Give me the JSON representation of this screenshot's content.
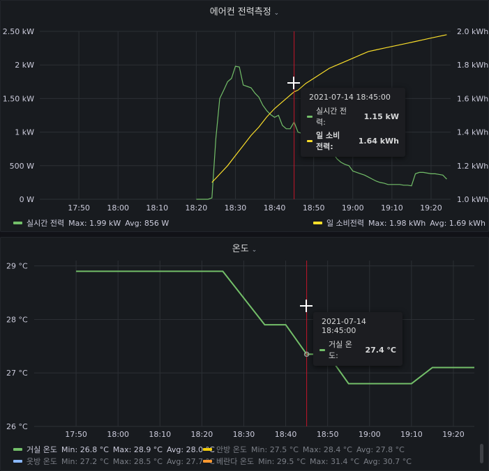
{
  "chart_data": [
    {
      "type": "line",
      "title": "에어컨 전력측정",
      "x_ticks": [
        "17:50",
        "18:00",
        "18:10",
        "18:20",
        "18:30",
        "18:40",
        "18:50",
        "19:00",
        "19:10",
        "19:20"
      ],
      "y_left_ticks": [
        "0 W",
        "500 W",
        "1 kW",
        "1.50 kW",
        "2 kW",
        "2.50 kW"
      ],
      "y_right_ticks": [
        "1.0 kWh",
        "1.2 kWh",
        "1.4 kWh",
        "1.6 kWh",
        "1.8 kWh",
        "2.0 kWh"
      ],
      "y_left_range": [
        0,
        2.5
      ],
      "y_right_range": [
        1.0,
        2.0
      ],
      "x_range": [
        "17:40",
        "19:25"
      ],
      "grid": true,
      "series": [
        {
          "name": "실시간 전력",
          "axis": "left",
          "unit": "kW",
          "color": "#73bf69",
          "x": [
            "18:20",
            "18:21",
            "18:22",
            "18:23",
            "18:24",
            "18:25",
            "18:26",
            "18:27",
            "18:28",
            "18:29",
            "18:30",
            "18:31",
            "18:32",
            "18:33",
            "18:34",
            "18:35",
            "18:36",
            "18:37",
            "18:38",
            "18:39",
            "18:40",
            "18:41",
            "18:42",
            "18:43",
            "18:44",
            "18:45",
            "18:46",
            "18:47",
            "18:48",
            "18:49",
            "18:50",
            "18:51",
            "18:52",
            "18:53",
            "18:54",
            "18:55",
            "18:56",
            "18:57",
            "18:58",
            "18:59",
            "19:00",
            "19:01",
            "19:02",
            "19:03",
            "19:04",
            "19:05",
            "19:06",
            "19:07",
            "19:08",
            "19:09",
            "19:10",
            "19:11",
            "19:12",
            "19:13",
            "19:14",
            "19:15",
            "19:16",
            "19:17",
            "19:18",
            "19:19",
            "19:20",
            "19:21",
            "19:22",
            "19:23",
            "19:24"
          ],
          "values": [
            0.0,
            0.0,
            0.0,
            0.0,
            0.02,
            0.9,
            1.5,
            1.62,
            1.75,
            1.8,
            1.98,
            1.97,
            1.7,
            1.68,
            1.66,
            1.58,
            1.52,
            1.4,
            1.32,
            1.26,
            1.22,
            1.25,
            1.1,
            1.05,
            1.05,
            1.15,
            1.0,
            0.98,
            0.9,
            0.85,
            0.8,
            0.78,
            0.73,
            0.7,
            0.68,
            0.68,
            0.6,
            0.55,
            0.52,
            0.5,
            0.42,
            0.4,
            0.38,
            0.36,
            0.33,
            0.3,
            0.27,
            0.25,
            0.24,
            0.22,
            0.22,
            0.22,
            0.22,
            0.21,
            0.21,
            0.2,
            0.38,
            0.4,
            0.4,
            0.39,
            0.38,
            0.38,
            0.37,
            0.36,
            0.3
          ]
        },
        {
          "name": "일 소비전력",
          "axis": "right",
          "unit": "kWh",
          "color": "#fade2a",
          "x": [
            "18:24",
            "18:26",
            "18:28",
            "18:30",
            "18:32",
            "18:34",
            "18:36",
            "18:38",
            "18:40",
            "18:42",
            "18:44",
            "18:45",
            "18:46",
            "18:48",
            "18:50",
            "18:52",
            "18:54",
            "18:56",
            "18:58",
            "19:00",
            "19:02",
            "19:04",
            "19:06",
            "19:08",
            "19:10",
            "19:12",
            "19:14",
            "19:16",
            "19:18",
            "19:20",
            "19:22",
            "19:24"
          ],
          "values": [
            1.1,
            1.15,
            1.2,
            1.26,
            1.32,
            1.38,
            1.43,
            1.49,
            1.54,
            1.58,
            1.62,
            1.64,
            1.65,
            1.69,
            1.72,
            1.75,
            1.78,
            1.8,
            1.82,
            1.84,
            1.86,
            1.88,
            1.89,
            1.9,
            1.91,
            1.92,
            1.93,
            1.94,
            1.95,
            1.96,
            1.97,
            1.98
          ]
        }
      ]
    },
    {
      "type": "line",
      "title": "온도",
      "x_ticks": [
        "17:50",
        "18:00",
        "18:10",
        "18:20",
        "18:30",
        "18:40",
        "18:50",
        "19:00",
        "19:10",
        "19:20"
      ],
      "y_ticks": [
        "26 °C",
        "27 °C",
        "28 °C",
        "29 °C"
      ],
      "y_range": [
        26,
        29.1
      ],
      "x_range": [
        "17:40",
        "19:25"
      ],
      "grid": true,
      "series": [
        {
          "name": "거실 온도",
          "unit": "°C",
          "color": "#73bf69",
          "x": [
            "17:50",
            "18:25",
            "18:35",
            "18:40",
            "18:45",
            "18:50",
            "18:55",
            "19:05",
            "19:10",
            "19:15",
            "19:25"
          ],
          "values": [
            28.9,
            28.9,
            27.9,
            27.9,
            27.35,
            27.35,
            26.8,
            26.8,
            26.8,
            27.1,
            27.1
          ]
        }
      ]
    }
  ],
  "panel1": {
    "title": "에어컨 전력측정",
    "legend_left": {
      "name": "실시간 전력",
      "max": "Max: 1.99 kW",
      "avg": "Avg: 856 W",
      "color": "#73bf69"
    },
    "legend_right": {
      "name": "일 소비전력",
      "max": "Max: 1.98 kWh",
      "avg": "Avg: 1.69 kWh",
      "color": "#fade2a"
    },
    "tooltip": {
      "time": "2021-07-14 18:45:00",
      "rows": [
        {
          "name": "실시간 전력:",
          "value": "1.15 kW",
          "color": "#73bf69"
        },
        {
          "name": "일 소비전력:",
          "value": "1.64 kWh",
          "color": "#fade2a"
        }
      ]
    }
  },
  "panel2": {
    "title": "온도",
    "legend": [
      {
        "name": "거실 온도",
        "min": "Min: 26.8 °C",
        "max": "Max: 28.9 °C",
        "avg": "Avg: 28.0 °C",
        "color": "#73bf69"
      },
      {
        "name": "안방 온도",
        "min": "Min: 27.5 °C",
        "max": "Max: 28.4 °C",
        "avg": "Avg: 27.8 °C",
        "color": "#f2cc0c"
      },
      {
        "name": "옷방 온도",
        "min": "Min: 27.2 °C",
        "max": "Max: 28.5 °C",
        "avg": "Avg: 27.7 °C",
        "color": "#8ab8ff"
      },
      {
        "name": "베란다 온도",
        "min": "Min: 29.5 °C",
        "max": "Max: 31.4 °C",
        "avg": "Avg: 30.7 °C",
        "color": "#ff9830"
      }
    ],
    "tooltip": {
      "time": "2021-07-14 18:45:00",
      "rows": [
        {
          "name": "거실 온도:",
          "value": "27.4 °C",
          "color": "#73bf69"
        }
      ]
    }
  },
  "cursor_time": "18:45",
  "colors": {
    "crosshair": "#c4162a",
    "grid": "#2c3035",
    "axis_text": "#ccccdc"
  }
}
